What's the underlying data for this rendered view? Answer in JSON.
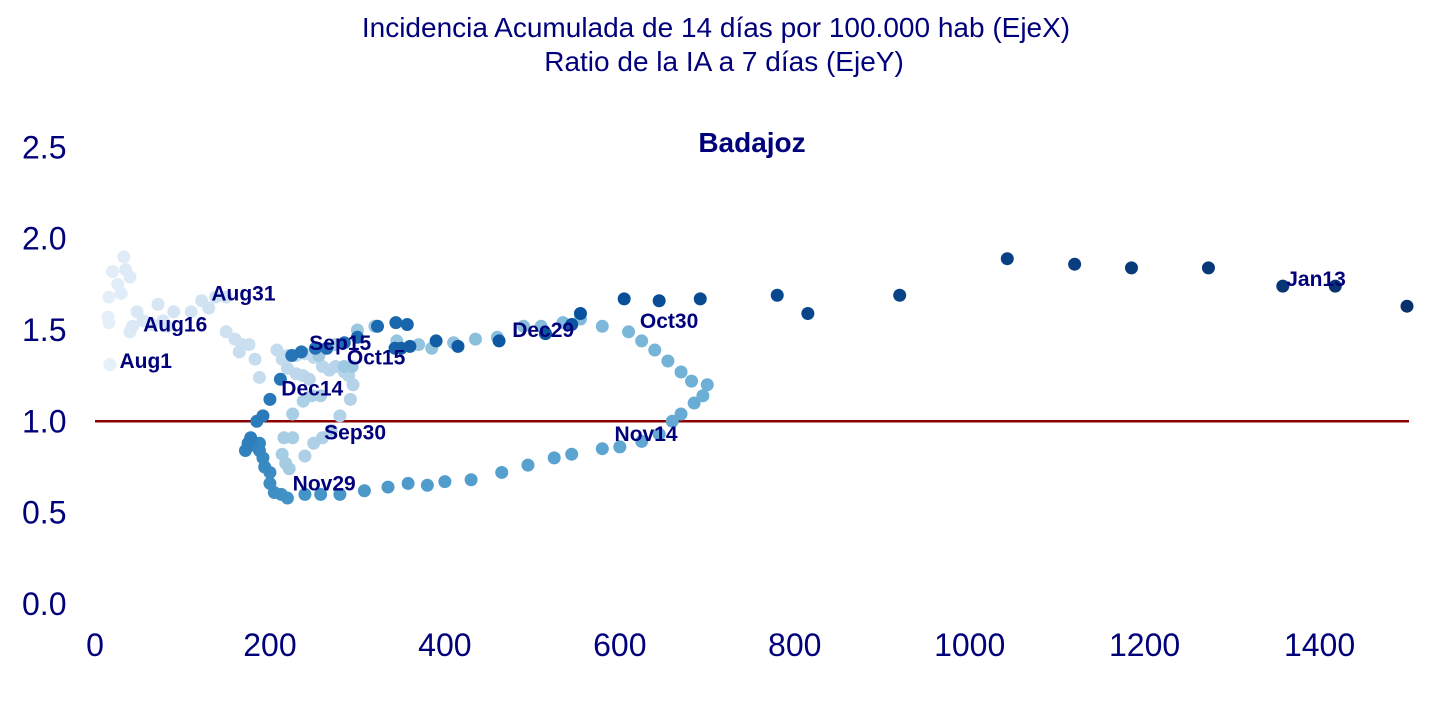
{
  "title_line1": "Incidencia Acumulada de 14 días por 100.000 hab (EjeX)",
  "title_line2": "Ratio de la IA a 7 días (EjeY)",
  "colors": {
    "text": "#00007a",
    "reference_line": "#8b0000",
    "point_light": "#e6f0fa",
    "point_dark": "#08306b"
  },
  "chart_data": {
    "type": "scatter",
    "title": "Badajoz",
    "xlim": [
      0,
      1500
    ],
    "ylim": [
      0,
      2.6
    ],
    "x_ticks": [
      0,
      200,
      400,
      600,
      800,
      1000,
      1200,
      1400
    ],
    "y_ticks": [
      0.0,
      0.5,
      1.0,
      1.5,
      2.0,
      2.5
    ],
    "x_tick_labels": [
      "0",
      "200",
      "400",
      "600",
      "800",
      "1000",
      "1200",
      "1400"
    ],
    "y_tick_labels": [
      "0.0",
      "0.5",
      "1.0",
      "1.5",
      "2.0",
      "2.5"
    ],
    "reference_line_y": 1.0,
    "grid": false,
    "points": [
      [
        17,
        1.31
      ],
      [
        16,
        1.54
      ],
      [
        15,
        1.57
      ],
      [
        16,
        1.68
      ],
      [
        20,
        1.82
      ],
      [
        26,
        1.75
      ],
      [
        30,
        1.7
      ],
      [
        33,
        1.9
      ],
      [
        35,
        1.83
      ],
      [
        40,
        1.79
      ],
      [
        40,
        1.49
      ],
      [
        43,
        1.52
      ],
      [
        48,
        1.6
      ],
      [
        55,
        1.55
      ],
      [
        65,
        1.53
      ],
      [
        72,
        1.64
      ],
      [
        78,
        1.55
      ],
      [
        82,
        1.52
      ],
      [
        90,
        1.6
      ],
      [
        110,
        1.6
      ],
      [
        122,
        1.66
      ],
      [
        130,
        1.62
      ],
      [
        138,
        1.68
      ],
      [
        150,
        1.68
      ],
      [
        150,
        1.49
      ],
      [
        160,
        1.45
      ],
      [
        168,
        1.42
      ],
      [
        176,
        1.42
      ],
      [
        165,
        1.38
      ],
      [
        183,
        1.34
      ],
      [
        188,
        1.24
      ],
      [
        208,
        1.39
      ],
      [
        214,
        1.34
      ],
      [
        220,
        1.36
      ],
      [
        230,
        1.36
      ],
      [
        240,
        1.37
      ],
      [
        250,
        1.35
      ],
      [
        220,
        1.29
      ],
      [
        230,
        1.26
      ],
      [
        238,
        1.25
      ],
      [
        245,
        1.23
      ],
      [
        260,
        1.3
      ],
      [
        268,
        1.28
      ],
      [
        275,
        1.3
      ],
      [
        285,
        1.27
      ],
      [
        290,
        1.25
      ],
      [
        295,
        1.2
      ],
      [
        292,
        1.12
      ],
      [
        280,
        1.03
      ],
      [
        270,
        0.95
      ],
      [
        260,
        0.91
      ],
      [
        250,
        0.88
      ],
      [
        240,
        0.81
      ],
      [
        238,
        1.11
      ],
      [
        248,
        1.14
      ],
      [
        258,
        1.14
      ],
      [
        226,
        1.04
      ],
      [
        226,
        0.91
      ],
      [
        216,
        0.91
      ],
      [
        214,
        0.82
      ],
      [
        218,
        0.77
      ],
      [
        222,
        0.74
      ],
      [
        256,
        1.36
      ],
      [
        265,
        1.4
      ],
      [
        275,
        1.42
      ],
      [
        285,
        1.3
      ],
      [
        294,
        1.3
      ],
      [
        300,
        1.5
      ],
      [
        320,
        1.52
      ],
      [
        345,
        1.44
      ],
      [
        370,
        1.42
      ],
      [
        385,
        1.4
      ],
      [
        410,
        1.43
      ],
      [
        435,
        1.45
      ],
      [
        460,
        1.46
      ],
      [
        490,
        1.52
      ],
      [
        510,
        1.52
      ],
      [
        535,
        1.54
      ],
      [
        555,
        1.56
      ],
      [
        580,
        1.52
      ],
      [
        610,
        1.49
      ],
      [
        625,
        1.44
      ],
      [
        640,
        1.39
      ],
      [
        655,
        1.33
      ],
      [
        670,
        1.27
      ],
      [
        682,
        1.22
      ],
      [
        700,
        1.2
      ],
      [
        695,
        1.14
      ],
      [
        685,
        1.1
      ],
      [
        670,
        1.04
      ],
      [
        660,
        1.0
      ],
      [
        645,
        0.93
      ],
      [
        625,
        0.89
      ],
      [
        600,
        0.86
      ],
      [
        580,
        0.85
      ],
      [
        545,
        0.82
      ],
      [
        525,
        0.8
      ],
      [
        495,
        0.76
      ],
      [
        465,
        0.72
      ],
      [
        430,
        0.68
      ],
      [
        400,
        0.67
      ],
      [
        380,
        0.65
      ],
      [
        358,
        0.66
      ],
      [
        335,
        0.64
      ],
      [
        308,
        0.62
      ],
      [
        280,
        0.6
      ],
      [
        258,
        0.6
      ],
      [
        240,
        0.6
      ],
      [
        220,
        0.58
      ],
      [
        213,
        0.6
      ],
      [
        205,
        0.61
      ],
      [
        200,
        0.66
      ],
      [
        200,
        0.72
      ],
      [
        194,
        0.75
      ],
      [
        192,
        0.8
      ],
      [
        188,
        0.84
      ],
      [
        188,
        0.88
      ],
      [
        180,
        0.87
      ],
      [
        172,
        0.84
      ],
      [
        175,
        0.88
      ],
      [
        178,
        0.91
      ],
      [
        185,
        1.0
      ],
      [
        192,
        1.03
      ],
      [
        200,
        1.12
      ],
      [
        212,
        1.23
      ],
      [
        225,
        1.36
      ],
      [
        236,
        1.38
      ],
      [
        252,
        1.4
      ],
      [
        265,
        1.4
      ],
      [
        285,
        1.43
      ],
      [
        300,
        1.46
      ],
      [
        323,
        1.52
      ],
      [
        344,
        1.54
      ],
      [
        357,
        1.53
      ],
      [
        343,
        1.4
      ],
      [
        350,
        1.4
      ],
      [
        360,
        1.41
      ],
      [
        390,
        1.44
      ],
      [
        415,
        1.41
      ],
      [
        462,
        1.44
      ],
      [
        515,
        1.48
      ],
      [
        545,
        1.53
      ],
      [
        555,
        1.59
      ],
      [
        605,
        1.67
      ],
      [
        645,
        1.66
      ],
      [
        692,
        1.67
      ],
      [
        780,
        1.69
      ],
      [
        815,
        1.59
      ],
      [
        920,
        1.69
      ],
      [
        1043,
        1.89
      ],
      [
        1120,
        1.86
      ],
      [
        1185,
        1.84
      ],
      [
        1273,
        1.84
      ],
      [
        1358,
        1.74
      ],
      [
        1418,
        1.74
      ],
      [
        1500,
        1.63
      ]
    ],
    "annotations": [
      {
        "text": "Aug1",
        "x": 28,
        "y": 1.33
      },
      {
        "text": "Aug16",
        "x": 55,
        "y": 1.53
      },
      {
        "text": "Aug31",
        "x": 133,
        "y": 1.7
      },
      {
        "text": "Sep15",
        "x": 245,
        "y": 1.43
      },
      {
        "text": "Oct15",
        "x": 288,
        "y": 1.35
      },
      {
        "text": "Dec14",
        "x": 213,
        "y": 1.18
      },
      {
        "text": "Sep30",
        "x": 262,
        "y": 0.94
      },
      {
        "text": "Nov29",
        "x": 226,
        "y": 0.66
      },
      {
        "text": "Dec29",
        "x": 477,
        "y": 1.5
      },
      {
        "text": "Oct30",
        "x": 623,
        "y": 1.55
      },
      {
        "text": "Nov14",
        "x": 594,
        "y": 0.93
      },
      {
        "text": "Jan13",
        "x": 1430,
        "y": 1.78
      }
    ]
  }
}
